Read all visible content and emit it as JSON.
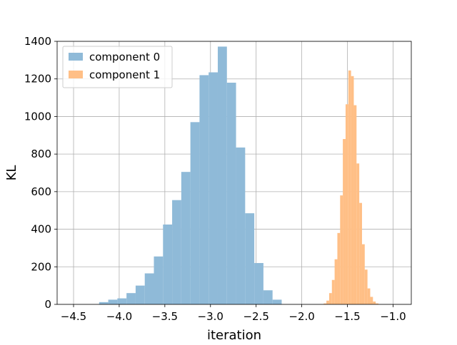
{
  "chart_data": {
    "type": "histogram",
    "xlabel": "iteration",
    "ylabel": "KL",
    "xlim": [
      -4.68,
      -0.8
    ],
    "ylim": [
      0,
      1400
    ],
    "x_ticks": [
      -4.5,
      -4.0,
      -3.5,
      -3.0,
      -2.5,
      -2.0,
      -1.5,
      -1.0
    ],
    "x_tick_labels": [
      "−4.5",
      "−4.0",
      "−3.5",
      "−3.0",
      "−2.5",
      "−2.0",
      "−1.5",
      "−1.0"
    ],
    "y_ticks": [
      0,
      200,
      400,
      600,
      800,
      1000,
      1200,
      1400
    ],
    "y_tick_labels": [
      "0",
      "200",
      "400",
      "600",
      "800",
      "1000",
      "1200",
      "1400"
    ],
    "grid": true,
    "legend_position": "top-left",
    "series": [
      {
        "name": "component 0",
        "color": "#8fbad8",
        "legend_color": "#8fbad8",
        "bins": [
          [
            -4.22,
            -4.12,
            12
          ],
          [
            -4.12,
            -4.02,
            25
          ],
          [
            -4.02,
            -3.92,
            32
          ],
          [
            -3.92,
            -3.82,
            60
          ],
          [
            -3.82,
            -3.72,
            100
          ],
          [
            -3.72,
            -3.62,
            165
          ],
          [
            -3.62,
            -3.52,
            255
          ],
          [
            -3.52,
            -3.42,
            425
          ],
          [
            -3.42,
            -3.32,
            555
          ],
          [
            -3.32,
            -3.22,
            705
          ],
          [
            -3.22,
            -3.12,
            970
          ],
          [
            -3.12,
            -3.02,
            1220
          ],
          [
            -3.02,
            -2.92,
            1235
          ],
          [
            -2.92,
            -2.82,
            1372
          ],
          [
            -2.82,
            -2.72,
            1180
          ],
          [
            -2.72,
            -2.62,
            835
          ],
          [
            -2.62,
            -2.52,
            485
          ],
          [
            -2.52,
            -2.42,
            220
          ],
          [
            -2.42,
            -2.32,
            75
          ],
          [
            -2.32,
            -2.22,
            25
          ]
        ]
      },
      {
        "name": "component 1",
        "color": "#ffbf86",
        "legend_color": "#ffbf86",
        "bins": [
          [
            -1.76,
            -1.73,
            5
          ],
          [
            -1.73,
            -1.7,
            20
          ],
          [
            -1.7,
            -1.67,
            60
          ],
          [
            -1.67,
            -1.64,
            130
          ],
          [
            -1.64,
            -1.61,
            240
          ],
          [
            -1.61,
            -1.58,
            380
          ],
          [
            -1.58,
            -1.55,
            580
          ],
          [
            -1.55,
            -1.52,
            880
          ],
          [
            -1.52,
            -1.49,
            1065
          ],
          [
            -1.49,
            -1.46,
            1245
          ],
          [
            -1.46,
            -1.43,
            1215
          ],
          [
            -1.43,
            -1.4,
            1060
          ],
          [
            -1.4,
            -1.37,
            750
          ],
          [
            -1.37,
            -1.34,
            540
          ],
          [
            -1.34,
            -1.31,
            320
          ],
          [
            -1.31,
            -1.28,
            185
          ],
          [
            -1.28,
            -1.25,
            85
          ],
          [
            -1.25,
            -1.22,
            40
          ],
          [
            -1.22,
            -1.19,
            15
          ],
          [
            -1.19,
            -1.16,
            5
          ]
        ]
      }
    ]
  }
}
